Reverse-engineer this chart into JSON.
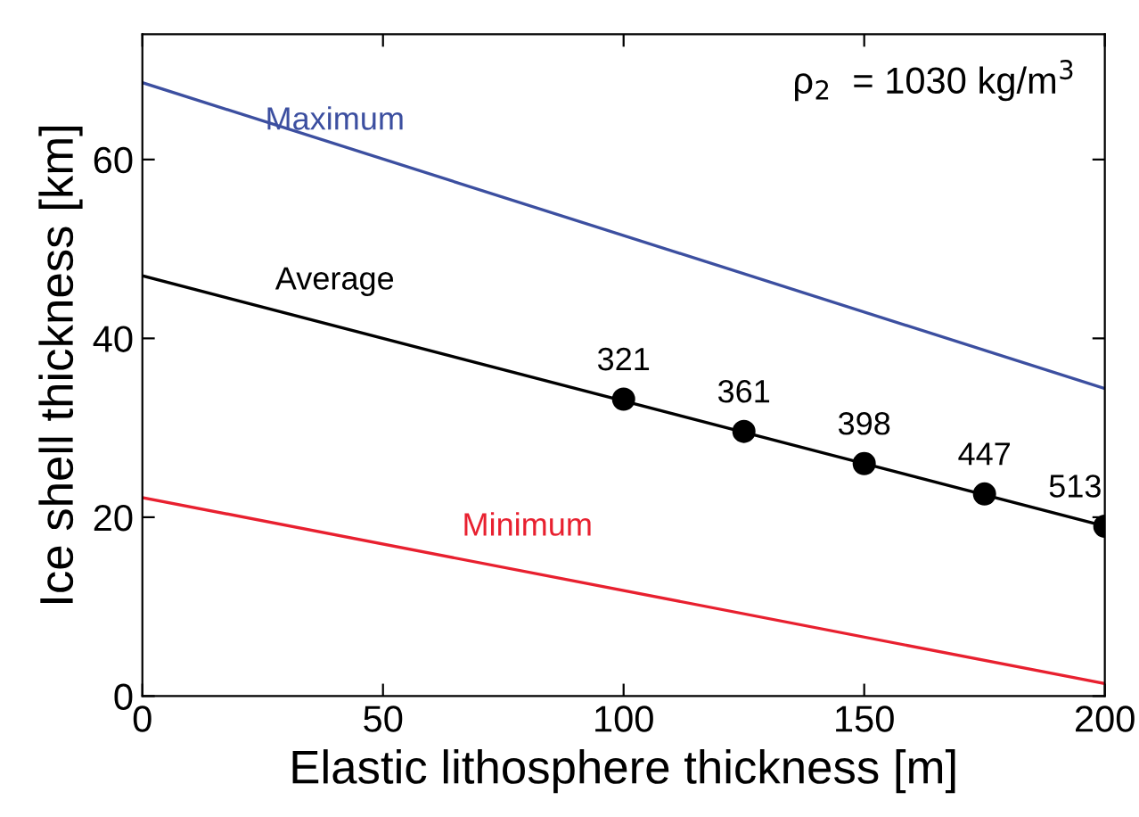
{
  "chart_data": {
    "type": "line",
    "xlabel": "Elastic lithosphere thickness [m]",
    "ylabel": "Ice shell thickness [km]",
    "xlim": [
      0,
      200
    ],
    "ylim": [
      0,
      74
    ],
    "xticks": [
      0,
      50,
      100,
      150,
      200
    ],
    "yticks": [
      0,
      20,
      40,
      60
    ],
    "grid": false,
    "marker": "none",
    "line_style": "solid",
    "annotations": [
      "ρ$_{2}$  = 1030 kg/m$^{3}$",
      {
        "text": "321",
        "x": 100,
        "y": 33.2
      },
      {
        "text": "361",
        "x": 125,
        "y": 29.6
      },
      {
        "text": "398",
        "x": 150,
        "y": 26
      },
      {
        "text": "447",
        "x": 175,
        "y": 22.6
      },
      {
        "text": "513",
        "x": 200,
        "y": 19
      }
    ],
    "series": [
      {
        "name": "Maximum",
        "color": "#3c4fa0",
        "x": [
          0,
          200
        ],
        "values": [
          68.6,
          34.4
        ]
      },
      {
        "name": "Average",
        "color": "#000000",
        "x": [
          0,
          200
        ],
        "values": [
          47,
          19
        ]
      },
      {
        "name": "Minimum",
        "color": "#e8202f",
        "x": [
          0,
          200
        ],
        "values": [
          22.2,
          1.4
        ]
      },
      {
        "type": "scatter",
        "marker": "circle",
        "color": "#000000",
        "x": [
          100,
          125,
          150,
          175,
          200
        ],
        "values": [
          33.2,
          29.6,
          26,
          22.6,
          19
        ]
      }
    ]
  }
}
